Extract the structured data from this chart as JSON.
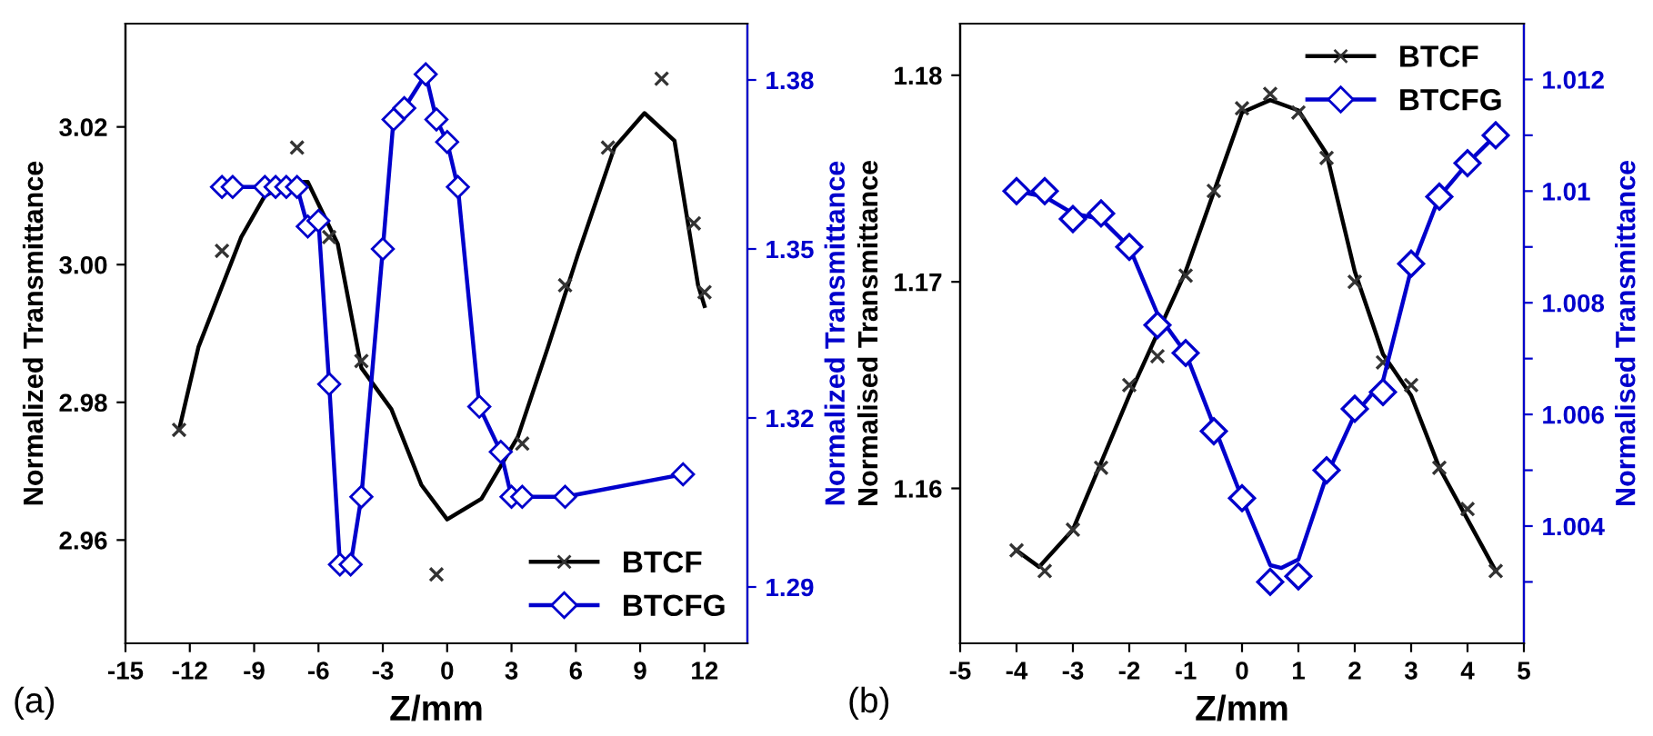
{
  "chart_data": [
    {
      "type": "line",
      "xlabel": "Z/mm",
      "ylabel": "Normalized Transmittance",
      "y2label": "Normalized Transmittance",
      "annotations": [
        "(a)"
      ],
      "legend": "bottom right",
      "grid": false,
      "xlim": [
        -15,
        14
      ],
      "xticks": [
        -15,
        -12,
        -9,
        -6,
        -3,
        0,
        3,
        6,
        9,
        12
      ],
      "ylim": [
        2.945,
        3.035
      ],
      "yticks": [
        2.96,
        2.98,
        {
          "value": 3.0,
          "label": "3.00"
        },
        3.02
      ],
      "y2lim": [
        1.28,
        1.39
      ],
      "y2ticks": [
        1.29,
        1.32,
        1.35,
        1.38
      ],
      "series": [
        {
          "name": "BTCF",
          "type": "scatter",
          "color": "#333333",
          "marker": "cross",
          "x": [
            -12.5,
            -10.5,
            -7,
            -5.5,
            -4,
            -0.5,
            3.5,
            5.5,
            7.5,
            10,
            11.5,
            12
          ],
          "values": [
            2.976,
            3.002,
            3.017,
            3.004,
            2.986,
            2.955,
            2.974,
            2.997,
            3.017,
            3.027,
            3.006,
            2.996
          ]
        },
        {
          "color": "#000000",
          "marker": "none",
          "x": [
            -12.5,
            -11.6,
            -9.6,
            -8.5,
            -7.3,
            -6.5,
            -5.1,
            -4,
            -2.6,
            -1.2,
            0,
            1.6,
            3.3,
            4.7,
            6.1,
            7.8,
            9.2,
            10.6,
            11.7,
            12
          ],
          "values": [
            2.976,
            2.988,
            3.004,
            3.01,
            3.012,
            3.012,
            3.003,
            2.985,
            2.979,
            2.968,
            2.963,
            2.966,
            2.975,
            2.988,
            3.0015,
            3.017,
            3.022,
            3.018,
            2.997,
            2.994
          ]
        },
        {
          "name": "BTCFG",
          "axis": "y2",
          "color": "#0000cc",
          "marker": "diamond",
          "x": [
            -10.5,
            -10,
            -8.5,
            -8,
            -7.5,
            -7,
            -6.5,
            -6,
            -5.5,
            -5,
            -4.5,
            -4,
            -3,
            -2.5,
            -2,
            -1,
            -0.5,
            0,
            0.5,
            1.5,
            2.5,
            3,
            3.5,
            5.5,
            11
          ],
          "values": [
            1.361,
            1.361,
            1.361,
            1.361,
            1.361,
            1.361,
            1.354,
            1.355,
            1.326,
            1.294,
            1.294,
            1.306,
            1.35,
            1.373,
            1.375,
            1.381,
            1.373,
            1.369,
            1.361,
            1.322,
            1.314,
            1.306,
            1.306,
            1.306,
            1.31
          ]
        }
      ]
    },
    {
      "type": "line",
      "xlabel": "Z/mm",
      "ylabel": "Normalised Transmittance",
      "y2label": "Normalised Transmittance",
      "annotations": [
        "(b)"
      ],
      "legend": "top right",
      "grid": false,
      "xlim": [
        -5,
        5
      ],
      "xticks": [
        -5,
        -4,
        -3,
        -2,
        -1,
        0,
        1,
        2,
        3,
        4,
        5
      ],
      "ylim": [
        1.1525,
        1.1825
      ],
      "yticks": [
        1.16,
        1.17,
        1.18
      ],
      "y2lim": [
        1.0019,
        1.013
      ],
      "y2ticks": [
        {
          "value": 1.003,
          "label": null
        },
        1.004,
        {
          "value": 1.005,
          "label": null
        },
        1.006,
        {
          "value": 1.007,
          "label": null
        },
        1.008,
        {
          "value": 1.009,
          "label": null
        },
        1.01,
        {
          "value": 1.011,
          "label": null
        },
        1.012
      ],
      "series": [
        {
          "name": "BTCF",
          "type": "scatter",
          "color": "#333333",
          "marker": "cross",
          "x": [
            -4,
            -3.5,
            -3,
            -2.5,
            -2,
            -1.5,
            -1,
            -0.5,
            0,
            0.5,
            1,
            1.5,
            2,
            2.5,
            3,
            3.5,
            4,
            4.5
          ],
          "values": [
            1.157,
            1.156,
            1.158,
            1.161,
            1.165,
            1.1664,
            1.1703,
            1.1744,
            1.1784,
            1.1791,
            1.1782,
            1.176,
            1.17,
            1.1661,
            1.165,
            1.161,
            1.159,
            1.156
          ]
        },
        {
          "color": "#000000",
          "marker": "none",
          "x": [
            -4,
            -3.6,
            -3,
            -2,
            -1,
            0,
            0.5,
            1,
            1.5,
            2,
            2.5,
            3,
            3.5,
            4,
            4.5
          ],
          "values": [
            1.157,
            1.1562,
            1.158,
            1.1645,
            1.1705,
            1.1782,
            1.1788,
            1.1783,
            1.1762,
            1.1705,
            1.1665,
            1.1645,
            1.161,
            1.1585,
            1.156
          ]
        },
        {
          "name": "BTCFG",
          "type": "scatter",
          "axis": "y2",
          "color": "#0000cc",
          "marker": "diamond",
          "x": [
            -4,
            -3.5,
            -3,
            -2.5,
            -2,
            -1.5,
            -1,
            -0.5,
            0,
            0.5,
            1,
            1.5,
            2,
            2.5,
            3,
            3.5,
            4,
            4.5
          ],
          "values": [
            1.01,
            1.01,
            1.0095,
            1.0096,
            1.009,
            1.0076,
            1.0071,
            1.0057,
            1.0045,
            1.003,
            1.0031,
            1.005,
            1.0061,
            1.0064,
            1.0087,
            1.0099,
            1.0105,
            1.011
          ]
        },
        {
          "axis": "y2",
          "color": "#0000cc",
          "marker": "none",
          "x": [
            -4,
            -3.5,
            -3,
            -2.5,
            -2,
            -1.5,
            -1,
            -0.5,
            0,
            0.5,
            0.7,
            1,
            1.5,
            2,
            2.5,
            3,
            3.5,
            4,
            4.5
          ],
          "values": [
            1.01,
            1.0099,
            1.0096,
            1.0095,
            1.009,
            1.0078,
            1.0071,
            1.0058,
            1.0045,
            1.0033,
            1.00325,
            1.0034,
            1.0049,
            1.006,
            1.0066,
            1.0086,
            1.0099,
            1.0105,
            1.011
          ]
        }
      ]
    }
  ]
}
